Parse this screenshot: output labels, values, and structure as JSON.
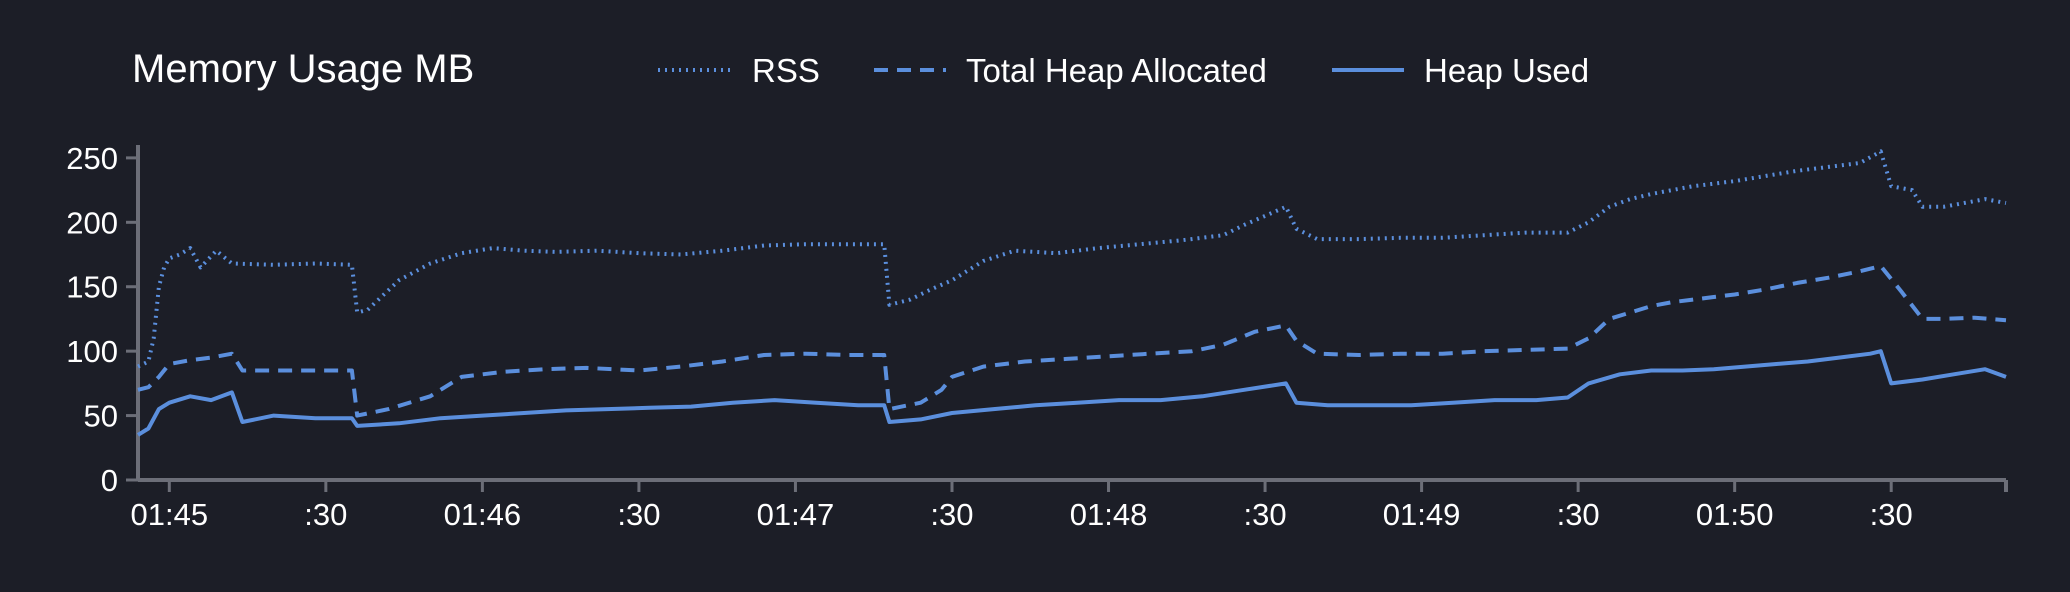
{
  "chart_data": {
    "type": "line",
    "title": "Memory Usage MB",
    "xlabel": "",
    "ylabel": "",
    "ylim": [
      0,
      260
    ],
    "yticks": [
      0,
      50,
      100,
      150,
      200,
      250
    ],
    "x_tick_labels": [
      "01:45",
      ":30",
      "01:46",
      ":30",
      "01:47",
      ":30",
      "01:48",
      ":30",
      "01:49",
      ":30",
      "01:50",
      ":30"
    ],
    "x_tick_times": [
      "01:45:00",
      "01:45:30",
      "01:46:00",
      "01:46:30",
      "01:47:00",
      "01:47:30",
      "01:48:00",
      "01:48:30",
      "01:49:00",
      "01:49:30",
      "01:50:00",
      "01:50:30"
    ],
    "x_range": [
      "01:44:54",
      "01:50:52"
    ],
    "grid": false,
    "legend_position": "top",
    "series": [
      {
        "name": "RSS",
        "style": "dotted",
        "color": "#5b8fdd",
        "points": [
          [
            "01:44:54",
            88
          ],
          [
            "01:44:56",
            92
          ],
          [
            "01:44:57",
            110
          ],
          [
            "01:44:58",
            150
          ],
          [
            "01:44:59",
            165
          ],
          [
            "01:45:00",
            172
          ],
          [
            "01:45:02",
            175
          ],
          [
            "01:45:04",
            180
          ],
          [
            "01:45:06",
            165
          ],
          [
            "01:45:09",
            178
          ],
          [
            "01:45:12",
            168
          ],
          [
            "01:45:20",
            167
          ],
          [
            "01:45:28",
            168
          ],
          [
            "01:45:35",
            167
          ],
          [
            "01:45:36",
            130
          ],
          [
            "01:45:38",
            132
          ],
          [
            "01:45:44",
            155
          ],
          [
            "01:45:50",
            168
          ],
          [
            "01:45:56",
            176
          ],
          [
            "01:46:02",
            180
          ],
          [
            "01:46:08",
            178
          ],
          [
            "01:46:14",
            177
          ],
          [
            "01:46:22",
            178
          ],
          [
            "01:46:30",
            176
          ],
          [
            "01:46:38",
            175
          ],
          [
            "01:46:46",
            178
          ],
          [
            "01:46:54",
            182
          ],
          [
            "01:47:02",
            183
          ],
          [
            "01:47:10",
            183
          ],
          [
            "01:47:17",
            183
          ],
          [
            "01:47:18",
            136
          ],
          [
            "01:47:22",
            140
          ],
          [
            "01:47:26",
            148
          ],
          [
            "01:47:30",
            155
          ],
          [
            "01:47:36",
            170
          ],
          [
            "01:47:42",
            178
          ],
          [
            "01:47:50",
            176
          ],
          [
            "01:47:58",
            180
          ],
          [
            "01:48:06",
            183
          ],
          [
            "01:48:14",
            186
          ],
          [
            "01:48:22",
            190
          ],
          [
            "01:48:26",
            198
          ],
          [
            "01:48:30",
            205
          ],
          [
            "01:48:34",
            212
          ],
          [
            "01:48:36",
            195
          ],
          [
            "01:48:40",
            187
          ],
          [
            "01:48:48",
            187
          ],
          [
            "01:48:56",
            188
          ],
          [
            "01:49:04",
            188
          ],
          [
            "01:49:12",
            190
          ],
          [
            "01:49:20",
            192
          ],
          [
            "01:49:28",
            192
          ],
          [
            "01:49:32",
            200
          ],
          [
            "01:49:36",
            212
          ],
          [
            "01:49:40",
            218
          ],
          [
            "01:49:44",
            222
          ],
          [
            "01:49:48",
            225
          ],
          [
            "01:49:52",
            228
          ],
          [
            "01:49:56",
            230
          ],
          [
            "01:50:00",
            232
          ],
          [
            "01:50:06",
            236
          ],
          [
            "01:50:12",
            240
          ],
          [
            "01:50:18",
            243
          ],
          [
            "01:50:24",
            246
          ],
          [
            "01:50:28",
            255
          ],
          [
            "01:50:30",
            228
          ],
          [
            "01:50:34",
            225
          ],
          [
            "01:50:36",
            212
          ],
          [
            "01:50:40",
            212
          ],
          [
            "01:50:44",
            215
          ],
          [
            "01:50:48",
            218
          ],
          [
            "01:50:52",
            215
          ]
        ]
      },
      {
        "name": "Total Heap Allocated",
        "style": "dashed",
        "color": "#5b8fdd",
        "points": [
          [
            "01:44:54",
            70
          ],
          [
            "01:44:56",
            72
          ],
          [
            "01:44:58",
            80
          ],
          [
            "01:45:00",
            90
          ],
          [
            "01:45:04",
            93
          ],
          [
            "01:45:08",
            95
          ],
          [
            "01:45:12",
            98
          ],
          [
            "01:45:14",
            85
          ],
          [
            "01:45:20",
            85
          ],
          [
            "01:45:28",
            85
          ],
          [
            "01:45:35",
            85
          ],
          [
            "01:45:36",
            50
          ],
          [
            "01:45:42",
            55
          ],
          [
            "01:45:50",
            65
          ],
          [
            "01:45:56",
            80
          ],
          [
            "01:46:04",
            84
          ],
          [
            "01:46:12",
            86
          ],
          [
            "01:46:20",
            87
          ],
          [
            "01:46:30",
            85
          ],
          [
            "01:46:38",
            88
          ],
          [
            "01:46:46",
            92
          ],
          [
            "01:46:54",
            97
          ],
          [
            "01:47:02",
            98
          ],
          [
            "01:47:10",
            97
          ],
          [
            "01:47:17",
            97
          ],
          [
            "01:47:18",
            55
          ],
          [
            "01:47:24",
            60
          ],
          [
            "01:47:28",
            70
          ],
          [
            "01:47:30",
            80
          ],
          [
            "01:47:36",
            88
          ],
          [
            "01:47:44",
            92
          ],
          [
            "01:47:52",
            94
          ],
          [
            "01:48:00",
            96
          ],
          [
            "01:48:08",
            98
          ],
          [
            "01:48:16",
            100
          ],
          [
            "01:48:22",
            105
          ],
          [
            "01:48:28",
            115
          ],
          [
            "01:48:34",
            120
          ],
          [
            "01:48:36",
            108
          ],
          [
            "01:48:40",
            98
          ],
          [
            "01:48:48",
            97
          ],
          [
            "01:48:56",
            98
          ],
          [
            "01:49:04",
            98
          ],
          [
            "01:49:12",
            100
          ],
          [
            "01:49:20",
            101
          ],
          [
            "01:49:28",
            102
          ],
          [
            "01:49:32",
            110
          ],
          [
            "01:49:36",
            125
          ],
          [
            "01:49:40",
            130
          ],
          [
            "01:49:44",
            135
          ],
          [
            "01:49:48",
            138
          ],
          [
            "01:49:52",
            140
          ],
          [
            "01:49:56",
            142
          ],
          [
            "01:50:00",
            144
          ],
          [
            "01:50:06",
            148
          ],
          [
            "01:50:12",
            153
          ],
          [
            "01:50:18",
            157
          ],
          [
            "01:50:24",
            162
          ],
          [
            "01:50:28",
            166
          ],
          [
            "01:50:32",
            146
          ],
          [
            "01:50:36",
            125
          ],
          [
            "01:50:40",
            125
          ],
          [
            "01:50:46",
            126
          ],
          [
            "01:50:52",
            124
          ]
        ]
      },
      {
        "name": "Heap Used",
        "style": "solid",
        "color": "#5b8fdd",
        "points": [
          [
            "01:44:54",
            35
          ],
          [
            "01:44:56",
            40
          ],
          [
            "01:44:58",
            55
          ],
          [
            "01:45:00",
            60
          ],
          [
            "01:45:04",
            65
          ],
          [
            "01:45:08",
            62
          ],
          [
            "01:45:12",
            68
          ],
          [
            "01:45:14",
            45
          ],
          [
            "01:45:20",
            50
          ],
          [
            "01:45:28",
            48
          ],
          [
            "01:45:35",
            48
          ],
          [
            "01:45:36",
            42
          ],
          [
            "01:45:44",
            44
          ],
          [
            "01:45:52",
            48
          ],
          [
            "01:46:00",
            50
          ],
          [
            "01:46:08",
            52
          ],
          [
            "01:46:16",
            54
          ],
          [
            "01:46:24",
            55
          ],
          [
            "01:46:32",
            56
          ],
          [
            "01:46:40",
            57
          ],
          [
            "01:46:48",
            60
          ],
          [
            "01:46:56",
            62
          ],
          [
            "01:47:04",
            60
          ],
          [
            "01:47:12",
            58
          ],
          [
            "01:47:17",
            58
          ],
          [
            "01:47:18",
            45
          ],
          [
            "01:47:24",
            47
          ],
          [
            "01:47:30",
            52
          ],
          [
            "01:47:38",
            55
          ],
          [
            "01:47:46",
            58
          ],
          [
            "01:47:54",
            60
          ],
          [
            "01:48:02",
            62
          ],
          [
            "01:48:10",
            62
          ],
          [
            "01:48:18",
            65
          ],
          [
            "01:48:26",
            70
          ],
          [
            "01:48:34",
            75
          ],
          [
            "01:48:36",
            60
          ],
          [
            "01:48:42",
            58
          ],
          [
            "01:48:50",
            58
          ],
          [
            "01:48:58",
            58
          ],
          [
            "01:49:06",
            60
          ],
          [
            "01:49:14",
            62
          ],
          [
            "01:49:22",
            62
          ],
          [
            "01:49:28",
            64
          ],
          [
            "01:49:32",
            75
          ],
          [
            "01:49:38",
            82
          ],
          [
            "01:49:44",
            85
          ],
          [
            "01:49:50",
            85
          ],
          [
            "01:49:56",
            86
          ],
          [
            "01:50:02",
            88
          ],
          [
            "01:50:08",
            90
          ],
          [
            "01:50:14",
            92
          ],
          [
            "01:50:20",
            95
          ],
          [
            "01:50:26",
            98
          ],
          [
            "01:50:28",
            100
          ],
          [
            "01:50:30",
            75
          ],
          [
            "01:50:36",
            78
          ],
          [
            "01:50:42",
            82
          ],
          [
            "01:50:48",
            86
          ],
          [
            "01:50:52",
            80
          ]
        ]
      }
    ]
  }
}
